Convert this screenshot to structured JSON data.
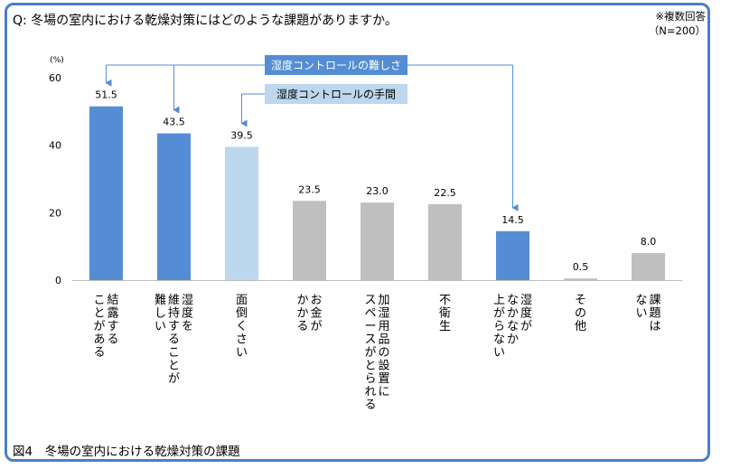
{
  "question": "Q: 冬場の室内における乾燥対策にはどのような課題がありますか。",
  "note_line1": "※複数回答",
  "note_line2": "（N=200）",
  "caption": "図4　冬場の室内における乾燥対策の課題",
  "chart_data": {
    "type": "bar",
    "title": "Q: 冬場の室内における乾燥対策にはどのような課題がありますか。",
    "ylabel": "(%)",
    "ylim": [
      0,
      60
    ],
    "yticks": [
      0,
      20,
      40,
      60
    ],
    "grid": false,
    "categories": [
      [
        "結露する",
        "ことがある"
      ],
      [
        "湿度を",
        "維持することが",
        "難しい"
      ],
      [
        "面倒くさい"
      ],
      [
        "お金が",
        "かかる"
      ],
      [
        "加湿用品の設置に",
        "スペースがとられる"
      ],
      [
        "不衛生"
      ],
      [
        "湿度が",
        "なかなか",
        "上がらない"
      ],
      [
        "その他"
      ],
      [
        "課題は",
        "ない"
      ]
    ],
    "values": [
      51.5,
      43.5,
      39.5,
      23.5,
      23.0,
      22.5,
      14.5,
      0.5,
      8.0
    ],
    "value_labels": [
      "51.5",
      "43.5",
      "39.5",
      "23.5",
      "23.0",
      "22.5",
      "14.5",
      "0.5",
      "8.0"
    ],
    "bar_colors": [
      "#548dd4",
      "#548dd4",
      "#bdd7ee",
      "#bfbfbf",
      "#bfbfbf",
      "#bfbfbf",
      "#548dd4",
      "#bfbfbf",
      "#bfbfbf"
    ],
    "annotations": [
      {
        "text": "湿度コントロールの難しさ",
        "targets": [
          0,
          1,
          6
        ],
        "color": "#548dd4"
      },
      {
        "text": "湿度コントロールの手間",
        "targets": [
          2
        ],
        "color": "#bdd7ee"
      }
    ]
  },
  "colors": {
    "frame": "#4a7fc4",
    "axis": "#bfbfbf",
    "arrow": "#548dd4"
  }
}
